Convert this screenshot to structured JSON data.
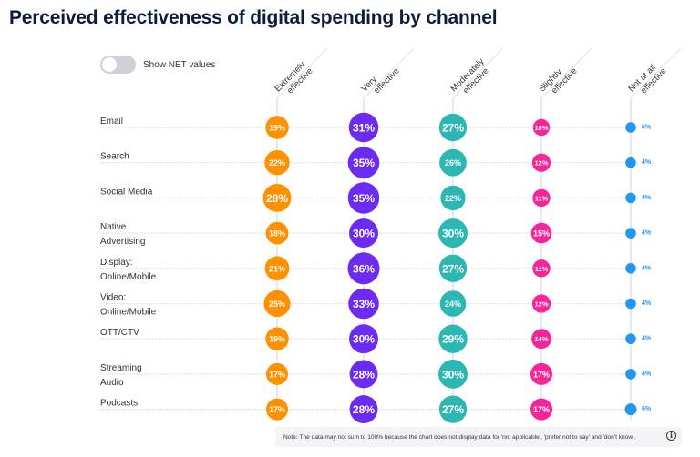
{
  "header": {
    "title": "Perceived effectiveness of digital spending by channel"
  },
  "controls": {
    "toggle_label": "Show NET values",
    "toggle_on": false
  },
  "note": {
    "text": "Note: The data may not sum to 100% because the chart does not display data for 'not applicable', 'prefer not to say' and 'don't know'.",
    "info_icon": "i"
  },
  "chart_data": {
    "type": "bubble-matrix",
    "title": "Perceived effectiveness of digital spending by channel",
    "columns": [
      {
        "label": [
          "Extremely",
          "effective"
        ],
        "color": "#ff9000"
      },
      {
        "label": [
          "Very",
          "effective"
        ],
        "color": "#6c2bf0"
      },
      {
        "label": [
          "Moderately",
          "effective"
        ],
        "color": "#2cb7b3"
      },
      {
        "label": [
          "Slightly",
          "effective"
        ],
        "color": "#f7259a"
      },
      {
        "label": [
          "Not at all",
          "effective"
        ],
        "color": "#2196f3"
      }
    ],
    "rows": [
      {
        "label": [
          "Email"
        ],
        "values": [
          19,
          31,
          27,
          10,
          5
        ]
      },
      {
        "label": [
          "Search"
        ],
        "values": [
          22,
          35,
          26,
          12,
          4
        ]
      },
      {
        "label": [
          "Social Media"
        ],
        "values": [
          28,
          35,
          22,
          11,
          4
        ]
      },
      {
        "label": [
          "Native",
          "Advertising"
        ],
        "values": [
          18,
          30,
          30,
          15,
          4
        ]
      },
      {
        "label": [
          "Display:",
          "Online/Mobile"
        ],
        "values": [
          21,
          36,
          27,
          11,
          4
        ]
      },
      {
        "label": [
          "Video:",
          "Online/Mobile"
        ],
        "values": [
          25,
          33,
          24,
          12,
          4
        ]
      },
      {
        "label": [
          "OTT/CTV"
        ],
        "values": [
          19,
          30,
          29,
          14,
          4
        ]
      },
      {
        "label": [
          "Streaming",
          "Audio"
        ],
        "values": [
          17,
          28,
          30,
          17,
          4
        ]
      },
      {
        "label": [
          "Podcasts"
        ],
        "values": [
          17,
          28,
          27,
          17,
          6
        ]
      }
    ],
    "value_suffix": "%",
    "legend": "none",
    "grid": true
  }
}
